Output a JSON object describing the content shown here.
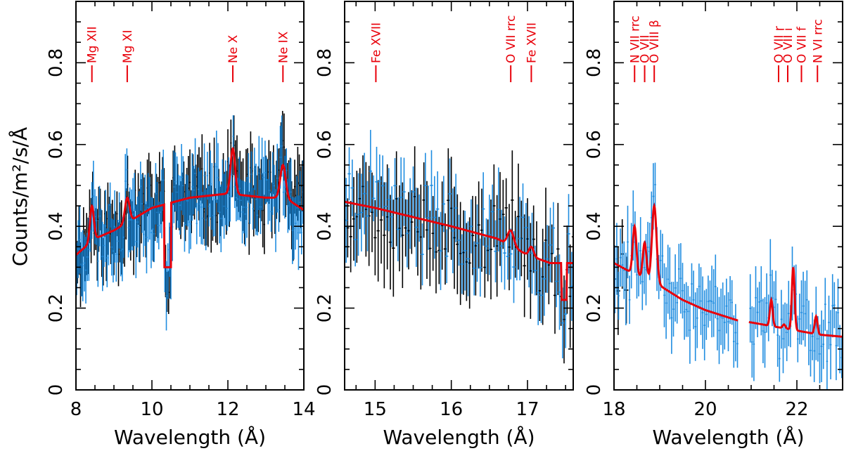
{
  "figure": {
    "ylabel": "Counts/m²/s/Å",
    "colors": {
      "spectrum_a": "#000000",
      "spectrum_b": "#1f8de0",
      "model": "#e8000a",
      "annotation": "#e8000a"
    }
  },
  "chart_data": [
    {
      "type": "line",
      "panel": "left",
      "xlabel": "Wavelength (Å)",
      "ylabel": "Counts/m²/s/Å",
      "xlim": [
        8,
        14
      ],
      "ylim": [
        0,
        0.95
      ],
      "xticks": [
        8,
        10,
        12,
        14
      ],
      "yticks": [
        0,
        0.2,
        0.4,
        0.6,
        0.8
      ],
      "xtick_labels": [
        "8",
        "10",
        "12",
        "14"
      ],
      "ytick_labels": [
        "0",
        "0.2",
        "0.4",
        "0.6",
        "0.8"
      ],
      "continuum": [
        [
          8.0,
          0.33
        ],
        [
          8.5,
          0.37
        ],
        [
          9.0,
          0.39
        ],
        [
          10.0,
          0.445
        ],
        [
          11.0,
          0.47
        ],
        [
          12.0,
          0.48
        ],
        [
          13.0,
          0.47
        ],
        [
          13.5,
          0.47
        ],
        [
          14.0,
          0.44
        ]
      ],
      "emission_lines": [
        {
          "center": 8.42,
          "peak": 0.45,
          "width": 0.05
        },
        {
          "center": 9.35,
          "peak": 0.47,
          "width": 0.06
        },
        {
          "center": 12.13,
          "peak": 0.59,
          "width": 0.06
        },
        {
          "center": 13.45,
          "peak": 0.55,
          "width": 0.07
        }
      ],
      "dips": [
        {
          "x0": 10.32,
          "x1": 10.5,
          "y": 0.3
        }
      ],
      "noise": 0.07,
      "spectrum_range": [
        8.0,
        14.0
      ],
      "series": [
        {
          "name": "Spectrum A (black)",
          "color": "#000000",
          "step": 0.04,
          "offset": 0.0,
          "seed": 11,
          "error": 0.07
        },
        {
          "name": "Spectrum B (blue)",
          "color": "#1f8de0",
          "step": 0.04,
          "offset": 0.02,
          "seed": 23,
          "error": 0.07
        },
        {
          "name": "Model",
          "color": "#e8000a"
        }
      ],
      "annotations": [
        {
          "label": "Mg XII",
          "x": 8.42
        },
        {
          "label": "Mg XI",
          "x": 9.35
        },
        {
          "label": "Ne X",
          "x": 12.13
        },
        {
          "label": "Ne IX",
          "x": 13.45
        }
      ]
    },
    {
      "type": "line",
      "panel": "middle",
      "xlabel": "Wavelength (Å)",
      "ylabel": "",
      "xlim": [
        14.6,
        17.6
      ],
      "ylim": [
        0,
        0.95
      ],
      "xticks": [
        15,
        16,
        17
      ],
      "yticks": [
        0,
        0.2,
        0.4,
        0.6,
        0.8
      ],
      "xtick_labels": [
        "15",
        "16",
        "17"
      ],
      "ytick_labels": [
        "0",
        "0.2",
        "0.4",
        "0.6",
        "0.8"
      ],
      "continuum": [
        [
          14.6,
          0.46
        ],
        [
          15.0,
          0.445
        ],
        [
          16.0,
          0.4
        ],
        [
          16.6,
          0.37
        ],
        [
          17.0,
          0.33
        ],
        [
          17.3,
          0.31
        ],
        [
          17.6,
          0.31
        ]
      ],
      "emission_lines": [
        {
          "center": 16.78,
          "peak": 0.39,
          "width": 0.04
        },
        {
          "center": 17.05,
          "peak": 0.35,
          "width": 0.03
        }
      ],
      "dips": [
        {
          "x0": 17.45,
          "x1": 17.52,
          "y": 0.22
        }
      ],
      "noise": 0.09,
      "spectrum_range": [
        14.6,
        17.6
      ],
      "series": [
        {
          "name": "Spectrum A (black)",
          "color": "#000000",
          "step": 0.04,
          "offset": 0.0,
          "seed": 37,
          "error": 0.1
        },
        {
          "name": "Spectrum B (blue)",
          "color": "#1f8de0",
          "step": 0.04,
          "offset": 0.02,
          "seed": 41,
          "error": 0.08
        },
        {
          "name": "Model",
          "color": "#e8000a"
        }
      ],
      "annotations": [
        {
          "label": "Fe XVII",
          "x": 15.01
        },
        {
          "label": "O VII rrc",
          "x": 16.78
        },
        {
          "label": "Fe XVII",
          "x": 17.05
        }
      ]
    },
    {
      "type": "line",
      "panel": "right",
      "xlabel": "Wavelength (Å)",
      "ylabel": "",
      "xlim": [
        18,
        23
      ],
      "ylim": [
        0,
        0.95
      ],
      "xticks": [
        18,
        20,
        22
      ],
      "yticks": [
        0,
        0.2,
        0.4,
        0.6,
        0.8
      ],
      "xtick_labels": [
        "18",
        "20",
        "22"
      ],
      "ytick_labels": [
        "0",
        "0.2",
        "0.4",
        "0.6",
        "0.8"
      ],
      "continuum": [
        [
          18.0,
          0.31
        ],
        [
          18.5,
          0.28
        ],
        [
          19.0,
          0.255
        ],
        [
          19.5,
          0.22
        ],
        [
          20.0,
          0.195
        ],
        [
          20.7,
          0.17
        ],
        [
          21.0,
          0.165
        ],
        [
          21.5,
          0.155
        ],
        [
          22.0,
          0.145
        ],
        [
          22.5,
          0.135
        ],
        [
          23.0,
          0.13
        ]
      ],
      "emission_lines": [
        {
          "center": 18.45,
          "peak": 0.4,
          "width": 0.04
        },
        {
          "center": 18.67,
          "peak": 0.36,
          "width": 0.04
        },
        {
          "center": 18.88,
          "peak": 0.45,
          "width": 0.05
        },
        {
          "center": 21.44,
          "peak": 0.22,
          "width": 0.03
        },
        {
          "center": 21.72,
          "peak": 0.16,
          "width": 0.03
        },
        {
          "center": 21.92,
          "peak": 0.3,
          "width": 0.03
        },
        {
          "center": 22.42,
          "peak": 0.18,
          "width": 0.03
        }
      ],
      "dips": [],
      "gaps": [
        [
          20.72,
          20.95
        ]
      ],
      "noise": 0.08,
      "spectrum_range": [
        18.0,
        23.0
      ],
      "series": [
        {
          "name": "Spectrum A (black)",
          "color": "#000000",
          "step": 0.09,
          "offset": 0.0,
          "seed": 53,
          "error": 0.1,
          "range": [
            18.0,
            18.3
          ]
        },
        {
          "name": "Spectrum B (blue)",
          "color": "#1f8de0",
          "step": 0.04,
          "offset": 0.02,
          "seed": 61,
          "error": 0.07
        },
        {
          "name": "Model",
          "color": "#e8000a"
        }
      ],
      "annotations": [
        {
          "label": "N VII rrc",
          "x": 18.45
        },
        {
          "label": "O VII",
          "x": 18.67
        },
        {
          "label": "O VIII β",
          "x": 18.88
        },
        {
          "label": "O VII r",
          "x": 21.6
        },
        {
          "label": "O VII i",
          "x": 21.8
        },
        {
          "label": "O VII f",
          "x": 22.1
        },
        {
          "label": "N VI rrc",
          "x": 22.45
        }
      ]
    }
  ]
}
